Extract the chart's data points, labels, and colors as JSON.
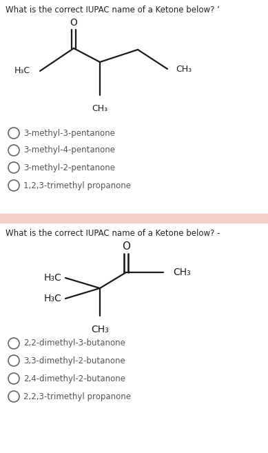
{
  "bg_color": "#ffffff",
  "divider_color": "#f5cfc5",
  "q1": {
    "question": "What is the correct IUPAC name of a Ketone below? ’",
    "options": [
      "3-methyl-3-pentanone",
      "3-methyl-4-pentanone",
      "3-methyl-2-pentanone",
      "1,2,3-trimethyl propanone"
    ]
  },
  "q2": {
    "question": "What is the correct IUPAC name of a Ketone below? -",
    "options": [
      "2,2-dimethyl-3-butanone",
      "3,3-dimethyl-2-butanone",
      "2,4-dimethyl-2-butanone",
      "2,2,3-trimethyl propanone"
    ]
  },
  "text_color": "#2a2a2a",
  "question_color": "#222222",
  "option_color": "#555555",
  "question_fontsize": 8.5,
  "option_fontsize": 8.5,
  "circle_color": "#666666",
  "bond_color": "#1a1a1a",
  "label_color": "#1a1a1a",
  "bond_lw": 1.6
}
